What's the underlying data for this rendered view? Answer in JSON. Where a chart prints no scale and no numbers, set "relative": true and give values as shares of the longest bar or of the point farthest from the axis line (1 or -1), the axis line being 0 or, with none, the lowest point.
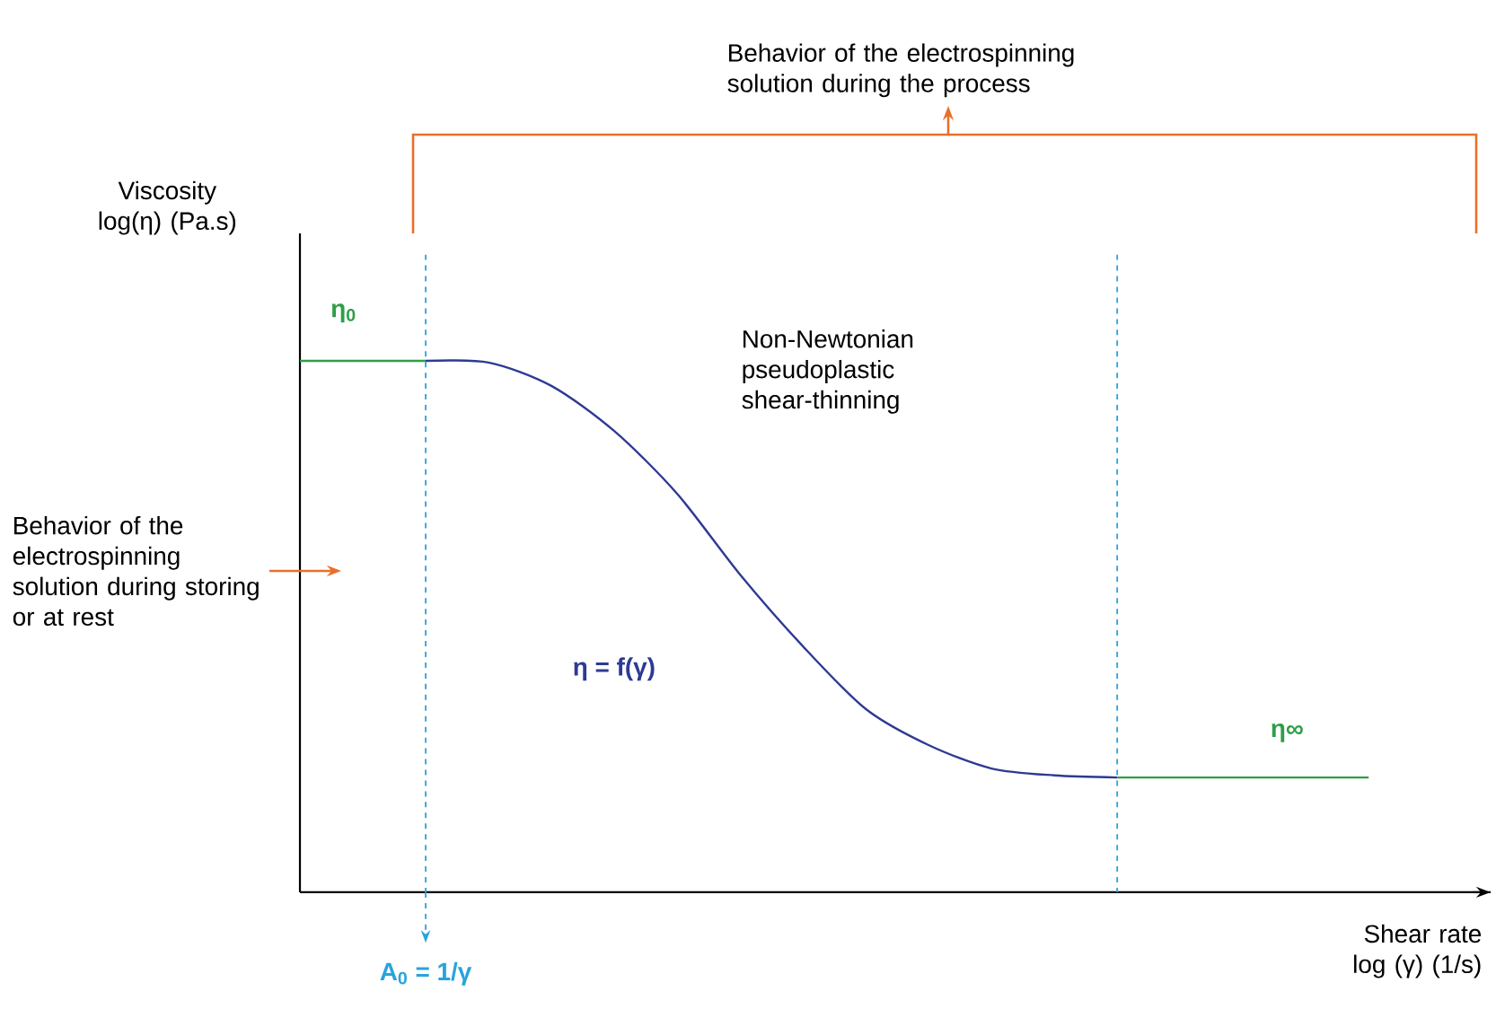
{
  "chart_data": {
    "type": "line",
    "relative": true,
    "xlabel": "Shear rate log (γ) (1/s)",
    "categories": [
      null,
      null,
      null,
      null,
      null,
      null,
      null,
      null,
      null,
      null,
      null,
      null,
      null,
      null,
      null,
      null,
      null,
      null
    ],
    "series": [
      {
        "name": "**η$_{0}$**",
        "color": "#2e9e48",
        "values": [
          1,
          1,
          1,
          null,
          null,
          null,
          null,
          null,
          null,
          null,
          null,
          null,
          null,
          null,
          null,
          null,
          null,
          null
        ]
      },
      {
        "name": "**η = f(γ)**",
        "color": "#2e3a93",
        "values": [
          null,
          null,
          1,
          0.997,
          0.953,
          0.868,
          0.75,
          0.598,
          0.463,
          0.345,
          0.277,
          0.233,
          0.22,
          0.216,
          null,
          null,
          null,
          null
        ]
      },
      {
        "name": "**η∞**",
        "color": "#2e9e48",
        "values": [
          null,
          null,
          null,
          null,
          null,
          null,
          null,
          null,
          null,
          null,
          null,
          null,
          null,
          0.216,
          0.216,
          0.216,
          0.216,
          0.216
        ]
      }
    ],
    "annotations": [
      "Behavior of the electrospinning solution during the process",
      "Non-Newtonian pseudoplastic shear-thinning",
      "Behavior of the electrospinning solution during storing or at rest",
      "**A$_{0}$ = 1/γ**",
      "Viscosity log(η) (Pa.s)"
    ],
    "marker": "none",
    "line_style": "solid"
  }
}
